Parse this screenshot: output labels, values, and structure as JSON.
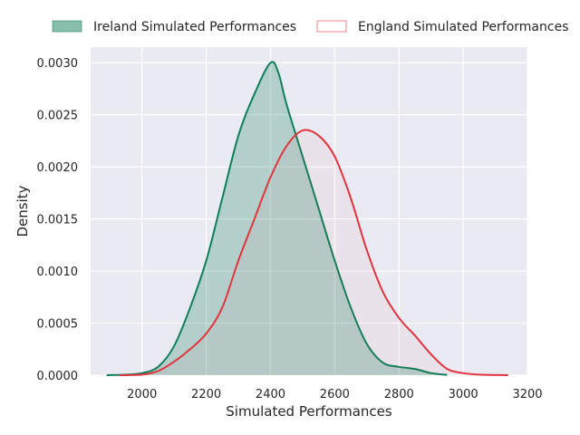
{
  "chart_data": {
    "type": "area",
    "title": "",
    "xlabel": "Simulated Performances",
    "ylabel": "Density",
    "xlim": [
      1840,
      3200
    ],
    "ylim": [
      0,
      0.00315
    ],
    "xticks": [
      2000,
      2200,
      2400,
      2600,
      2800,
      3000,
      3200
    ],
    "xtick_labels": [
      "2000",
      "2200",
      "2400",
      "2600",
      "2800",
      "3000",
      "3200"
    ],
    "yticks": [
      0,
      0.0005,
      0.001,
      0.0015,
      0.002,
      0.0025,
      0.003
    ],
    "ytick_labels": [
      "0.0000",
      "0.0005",
      "0.0010",
      "0.0015",
      "0.0020",
      "0.0025",
      "0.0030"
    ],
    "grid": true,
    "legend_position": "top",
    "series": [
      {
        "name": "Ireland Simulated Performances",
        "color": "#0f7f59",
        "fill": "#0f7f59",
        "filled": true,
        "points": [
          [
            1890,
            0
          ],
          [
            1950,
            5e-06
          ],
          [
            2000,
            2e-05
          ],
          [
            2050,
            8e-05
          ],
          [
            2100,
            0.00028
          ],
          [
            2150,
            0.00065
          ],
          [
            2200,
            0.0011
          ],
          [
            2250,
            0.0017
          ],
          [
            2300,
            0.0023
          ],
          [
            2350,
            0.0027
          ],
          [
            2400,
            0.003
          ],
          [
            2425,
            0.0029
          ],
          [
            2450,
            0.0026
          ],
          [
            2500,
            0.0021
          ],
          [
            2550,
            0.0016
          ],
          [
            2600,
            0.0011
          ],
          [
            2650,
            0.00065
          ],
          [
            2700,
            0.0003
          ],
          [
            2750,
            0.00012
          ],
          [
            2800,
            8e-05
          ],
          [
            2850,
            6e-05
          ],
          [
            2900,
            2e-05
          ],
          [
            2950,
            3e-06
          ]
        ]
      },
      {
        "name": "England Simulated Performances",
        "color": "#e0353f",
        "fill": "#e0353f",
        "filled": true,
        "points": [
          [
            1930,
            0
          ],
          [
            2000,
            5e-06
          ],
          [
            2050,
            4e-05
          ],
          [
            2100,
            0.00013
          ],
          [
            2150,
            0.00025
          ],
          [
            2200,
            0.0004
          ],
          [
            2250,
            0.00065
          ],
          [
            2300,
            0.0011
          ],
          [
            2350,
            0.0015
          ],
          [
            2400,
            0.0019
          ],
          [
            2450,
            0.0022
          ],
          [
            2500,
            0.00235
          ],
          [
            2550,
            0.0023
          ],
          [
            2600,
            0.0021
          ],
          [
            2650,
            0.0017
          ],
          [
            2700,
            0.0012
          ],
          [
            2750,
            0.0008
          ],
          [
            2800,
            0.00055
          ],
          [
            2850,
            0.00038
          ],
          [
            2900,
            0.0002
          ],
          [
            2950,
            6e-05
          ],
          [
            3000,
            2e-05
          ],
          [
            3050,
            5e-06
          ],
          [
            3140,
            0
          ]
        ]
      }
    ]
  }
}
